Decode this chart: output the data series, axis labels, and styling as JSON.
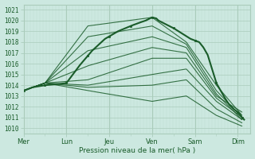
{
  "xlabel": "Pression niveau de la mer( hPa )",
  "bg_color": "#cce8e0",
  "grid_major_color": "#aaccbb",
  "grid_minor_color": "#bbddd0",
  "line_color_dark": "#1a5c2a",
  "line_color_mid": "#2a7a3a",
  "ylim": [
    1009.5,
    1021.5
  ],
  "yticks": [
    1010,
    1011,
    1012,
    1013,
    1014,
    1015,
    1016,
    1017,
    1018,
    1019,
    1020,
    1021
  ],
  "xtick_labels": [
    "Mer",
    "Lun",
    "Jeu",
    "Ven",
    "Sam",
    "Dim"
  ],
  "day_positions": [
    0,
    1,
    2,
    3,
    4,
    5
  ],
  "xlim": [
    0,
    5.3
  ],
  "ensemble_lines": [
    [
      1013.5,
      1014.2,
      1019.5,
      1020.3,
      1018.0,
      1014.0,
      1011.2
    ],
    [
      1013.5,
      1014.2,
      1018.5,
      1019.5,
      1017.8,
      1013.5,
      1011.0
    ],
    [
      1013.5,
      1014.2,
      1017.2,
      1018.5,
      1017.5,
      1013.2,
      1010.8
    ],
    [
      1013.5,
      1014.2,
      1015.8,
      1017.5,
      1017.0,
      1013.0,
      1011.5
    ],
    [
      1013.5,
      1014.2,
      1014.5,
      1016.5,
      1016.5,
      1012.8,
      1011.0
    ],
    [
      1013.5,
      1014.2,
      1014.0,
      1015.0,
      1015.5,
      1012.5,
      1010.8
    ],
    [
      1013.5,
      1014.2,
      1013.8,
      1014.0,
      1014.5,
      1011.8,
      1010.5
    ],
    [
      1013.5,
      1014.2,
      1013.5,
      1012.5,
      1013.0,
      1011.2,
      1010.2
    ]
  ],
  "ensemble_x": [
    0,
    0.5,
    1.5,
    3.0,
    3.8,
    4.5,
    5.1
  ],
  "main_line_x": [
    0,
    0.08,
    0.2,
    0.5,
    0.8,
    1.0,
    1.3,
    1.6,
    1.9,
    2.2,
    2.5,
    2.7,
    2.85,
    3.0,
    3.1,
    3.15,
    3.3,
    3.5,
    3.7,
    3.9,
    4.1,
    4.2,
    4.3,
    4.4,
    4.5,
    4.6,
    4.7,
    4.8,
    4.9,
    5.0,
    5.05,
    5.1,
    5.15
  ],
  "main_line_y": [
    1013.5,
    1013.6,
    1013.8,
    1014.0,
    1014.1,
    1014.2,
    1015.8,
    1017.2,
    1018.3,
    1019.0,
    1019.5,
    1019.8,
    1020.0,
    1020.3,
    1020.2,
    1020.0,
    1019.7,
    1019.3,
    1018.8,
    1018.3,
    1018.0,
    1017.5,
    1016.8,
    1015.5,
    1014.2,
    1013.5,
    1012.8,
    1012.2,
    1011.8,
    1011.5,
    1011.3,
    1011.0,
    1010.8
  ],
  "marker_x": [
    0,
    0.5,
    1.0,
    1.5,
    2.0,
    2.5,
    3.0,
    3.5,
    4.0,
    4.5,
    5.0,
    5.1
  ],
  "lw_ensemble": 0.8,
  "lw_main": 1.2
}
